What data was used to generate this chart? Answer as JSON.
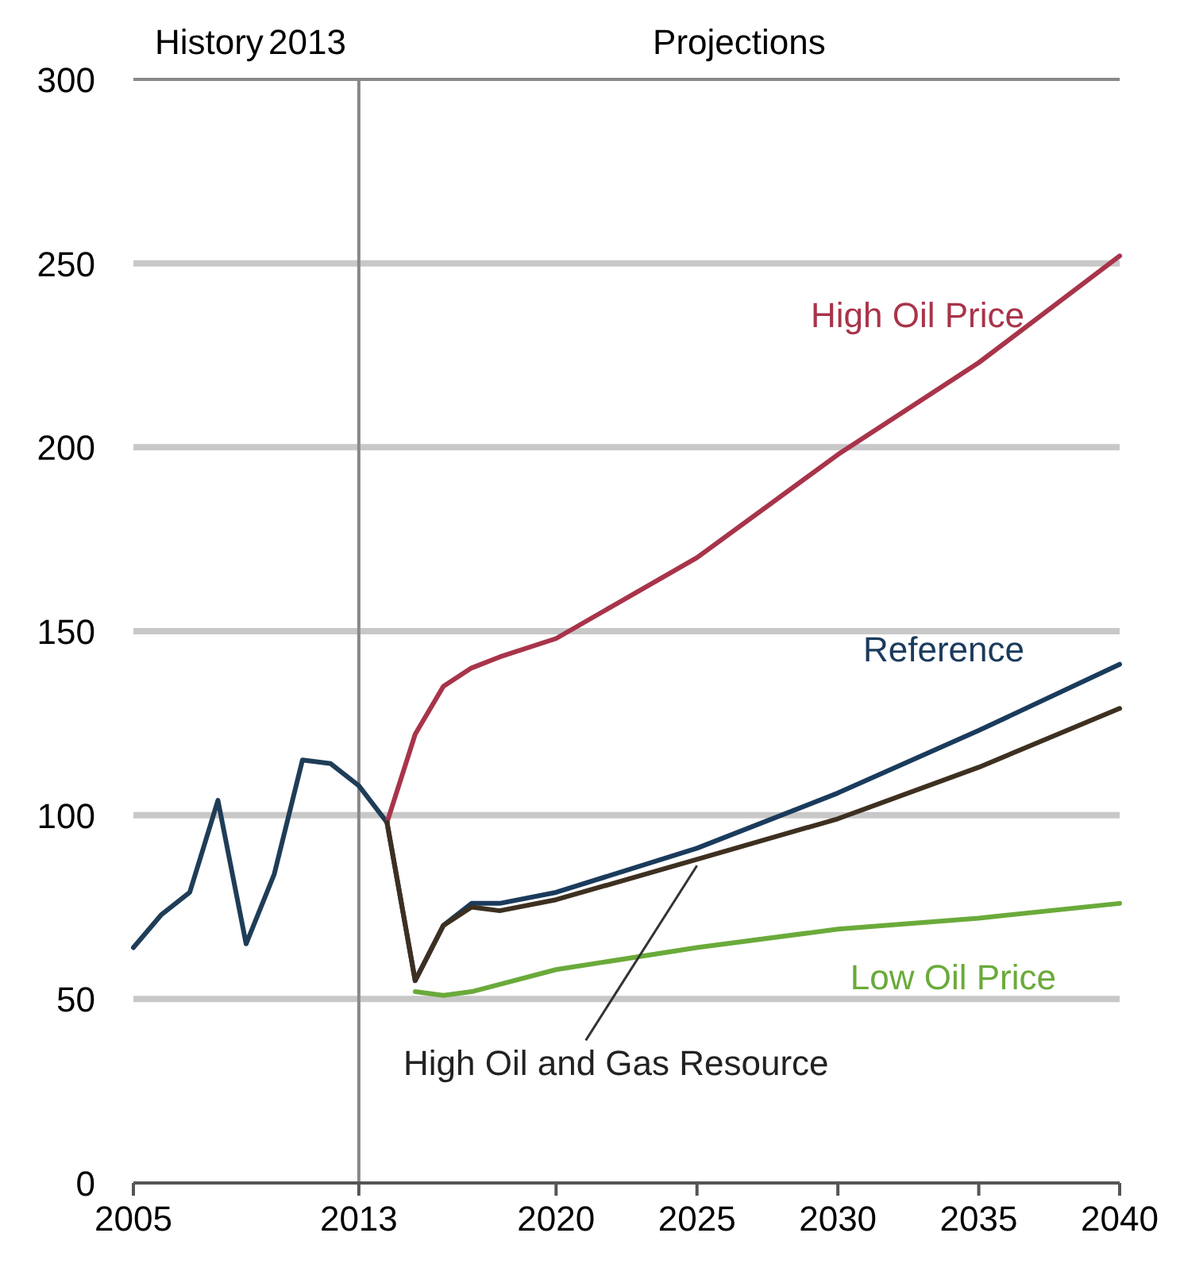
{
  "chart_data": {
    "type": "line",
    "x": [
      2005,
      2006,
      2007,
      2008,
      2009,
      2010,
      2011,
      2012,
      2013,
      2014
    ],
    "series": [
      {
        "color": "#1f3d57",
        "values": [
          64,
          73,
          79,
          104,
          65,
          84,
          115,
          114,
          108,
          98
        ]
      },
      {
        "name": "High Oil Price",
        "color": "#a8344a",
        "x": [
          2014,
          2015,
          2016,
          2017,
          2018,
          2020,
          2025,
          2030,
          2035,
          2040
        ],
        "values": [
          98,
          122,
          135,
          140,
          143,
          148,
          170,
          198,
          223,
          252
        ]
      },
      {
        "name": "Reference",
        "color": "#1a3b5c",
        "x": [
          2014,
          2015,
          2016,
          2017,
          2018,
          2020,
          2025,
          2030,
          2035,
          2040
        ],
        "values": [
          98,
          55,
          70,
          76,
          76,
          79,
          91,
          106,
          123,
          141
        ]
      },
      {
        "name": "High Oil and Gas Resource",
        "color": "#3d3020",
        "x": [
          2014,
          2015,
          2016,
          2017,
          2018,
          2020,
          2025,
          2030,
          2035,
          2040
        ],
        "values": [
          98,
          55,
          70,
          75,
          74,
          77,
          88,
          99,
          113,
          129
        ]
      },
      {
        "name": "Low Oil Price",
        "color": "#6aaa3a",
        "x": [
          2015,
          2016,
          2017,
          2018,
          2020,
          2025,
          2030,
          2035,
          2040
        ],
        "values": [
          52,
          51,
          52,
          54,
          58,
          64,
          69,
          72,
          76
        ]
      }
    ],
    "xlim": [
      2005,
      2040
    ],
    "xticks": [
      2005,
      2013,
      2020,
      2025,
      2030,
      2035,
      2040
    ],
    "ylim": [
      0,
      300
    ],
    "yticks": [
      0,
      50,
      100,
      150,
      200,
      250,
      300
    ],
    "grid": "y",
    "marker": "none",
    "line_style": "solid",
    "ref_lines": [
      {
        "axis": "x",
        "value": 2013,
        "label": "2013",
        "color": "#888888"
      }
    ],
    "annotations": [
      "History",
      "Projections"
    ]
  }
}
